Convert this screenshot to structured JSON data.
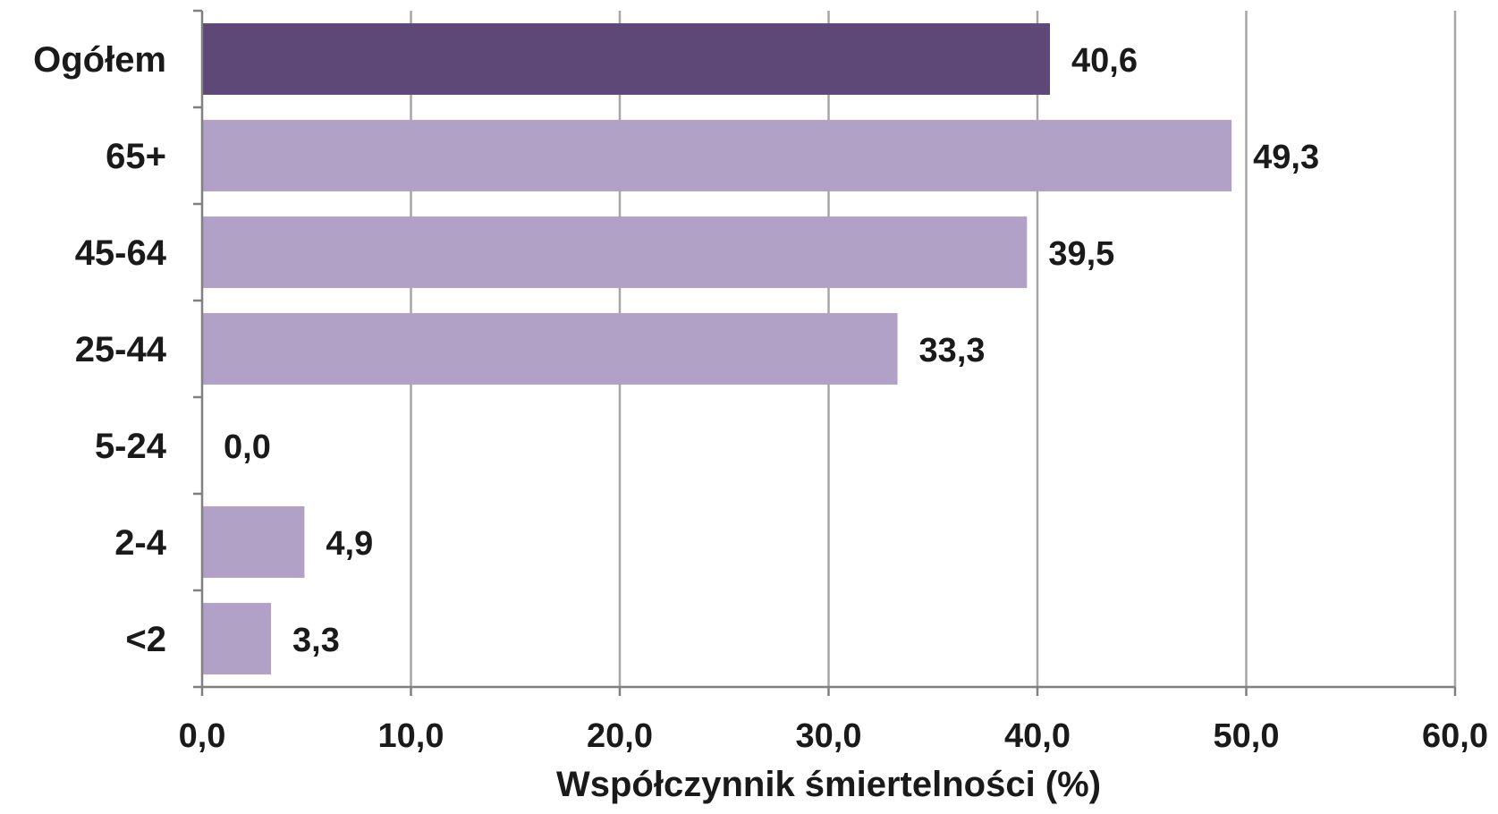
{
  "chart_data": {
    "type": "bar",
    "orientation": "horizontal",
    "categories": [
      "Ogółem",
      "65+",
      "45-64",
      "25-44",
      "5-24",
      "2-4",
      "<2"
    ],
    "values": [
      40.6,
      49.3,
      39.5,
      33.3,
      0.0,
      4.9,
      3.3
    ],
    "value_labels": [
      "40,6",
      "49,3",
      "39,5",
      "33,3",
      "0,0",
      "4,9",
      "3,3"
    ],
    "highlight_index": 0,
    "colors": {
      "highlight": "#5e4878",
      "bar": "#b2a1c7",
      "grid": "#a6a6a6",
      "axis": "#808080"
    },
    "xlabel": "Współczynnik śmiertelności (%)",
    "ylabel": "",
    "title": "",
    "xlim": [
      0,
      60
    ],
    "xticks": [
      0,
      10,
      20,
      30,
      40,
      50,
      60
    ],
    "xtick_labels": [
      "0,0",
      "10,0",
      "20,0",
      "30,0",
      "40,0",
      "50,0",
      "60,0"
    ],
    "grid": "vertical",
    "legend": "none"
  }
}
